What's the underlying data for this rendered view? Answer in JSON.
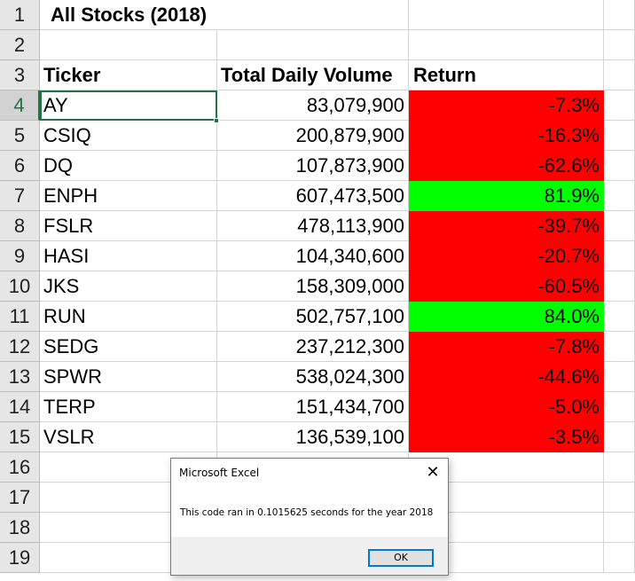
{
  "sheet": {
    "title": "All Stocks (2018)",
    "headers": {
      "ticker": "Ticker",
      "volume": "Total Daily Volume",
      "return": "Return"
    },
    "row_numbers": [
      "1",
      "2",
      "3",
      "4",
      "5",
      "6",
      "7",
      "8",
      "9",
      "10",
      "11",
      "12",
      "13",
      "14",
      "15",
      "16",
      "17",
      "18",
      "19"
    ],
    "rows": [
      {
        "ticker": "AY",
        "volume": "83,079,900",
        "return": "-7.3%",
        "status": "negative"
      },
      {
        "ticker": "CSIQ",
        "volume": "200,879,900",
        "return": "-16.3%",
        "status": "negative"
      },
      {
        "ticker": "DQ",
        "volume": "107,873,900",
        "return": "-62.6%",
        "status": "negative"
      },
      {
        "ticker": "ENPH",
        "volume": "607,473,500",
        "return": "81.9%",
        "status": "positive"
      },
      {
        "ticker": "FSLR",
        "volume": "478,113,900",
        "return": "-39.7%",
        "status": "negative"
      },
      {
        "ticker": "HASI",
        "volume": "104,340,600",
        "return": "-20.7%",
        "status": "negative"
      },
      {
        "ticker": "JKS",
        "volume": "158,309,000",
        "return": "-60.5%",
        "status": "negative"
      },
      {
        "ticker": "RUN",
        "volume": "502,757,100",
        "return": "84.0%",
        "status": "positive"
      },
      {
        "ticker": "SEDG",
        "volume": "237,212,300",
        "return": "-7.8%",
        "status": "negative"
      },
      {
        "ticker": "SPWR",
        "volume": "538,024,300",
        "return": "-44.6%",
        "status": "negative"
      },
      {
        "ticker": "TERP",
        "volume": "151,434,700",
        "return": "-5.0%",
        "status": "negative"
      },
      {
        "ticker": "VSLR",
        "volume": "136,539,100",
        "return": "-3.5%",
        "status": "negative"
      }
    ],
    "colors": {
      "negative": "#ff0000",
      "positive": "#00ff00",
      "selection": "#217346"
    }
  },
  "dialog": {
    "title": "Microsoft Excel",
    "close_icon": "close-icon",
    "message": "This code ran in 0.1015625 seconds for the year 2018",
    "ok_label": "OK"
  }
}
